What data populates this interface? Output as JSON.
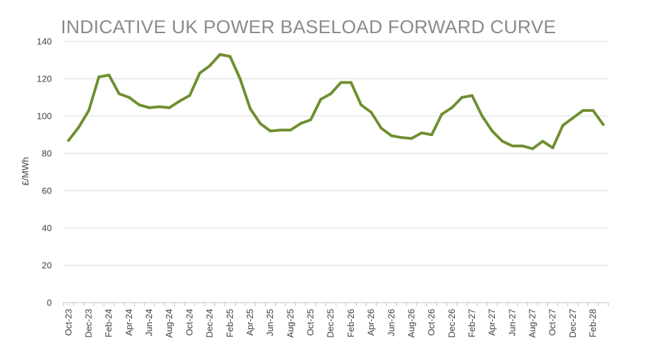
{
  "chart_data": {
    "type": "line",
    "title": "INDICATIVE UK POWER BASELOAD FORWARD CURVE",
    "ylabel": "£/MWh",
    "xlabel": "",
    "ylim": [
      0,
      140
    ],
    "yticks": [
      0,
      20,
      40,
      60,
      80,
      100,
      120,
      140
    ],
    "grid": true,
    "x": [
      "Oct-23",
      "Nov-23",
      "Dec-23",
      "Jan-24",
      "Feb-24",
      "Mar-24",
      "Apr-24",
      "May-24",
      "Jun-24",
      "Jul-24",
      "Aug-24",
      "Sep-24",
      "Oct-24",
      "Nov-24",
      "Dec-24",
      "Jan-25",
      "Feb-25",
      "Mar-25",
      "Apr-25",
      "May-25",
      "Jun-25",
      "Jul-25",
      "Aug-25",
      "Sep-25",
      "Oct-25",
      "Nov-25",
      "Dec-25",
      "Jan-26",
      "Feb-26",
      "Mar-26",
      "Apr-26",
      "May-26",
      "Jun-26",
      "Jul-26",
      "Aug-26",
      "Sep-26",
      "Oct-26",
      "Nov-26",
      "Dec-26",
      "Jan-27",
      "Feb-27",
      "Mar-27",
      "Apr-27",
      "May-27",
      "Jun-27",
      "Jul-27",
      "Aug-27",
      "Sep-27",
      "Oct-27",
      "Nov-27",
      "Dec-27",
      "Jan-28",
      "Feb-28",
      "Mar-28"
    ],
    "xtick_labels": [
      "Oct-23",
      "Dec-23",
      "Feb-24",
      "Apr-24",
      "Jun-24",
      "Aug-24",
      "Oct-24",
      "Dec-24",
      "Feb-25",
      "Apr-25",
      "Jun-25",
      "Aug-25",
      "Oct-25",
      "Dec-25",
      "Feb-26",
      "Apr-26",
      "Jun-26",
      "Aug-26",
      "Oct-26",
      "Dec-26",
      "Feb-27",
      "Apr-27",
      "Jun-27",
      "Aug-27",
      "Oct-27",
      "Dec-27",
      "Feb-28"
    ],
    "series": [
      {
        "color": "#6f8f31",
        "values": [
          87,
          94,
          103,
          121,
          122,
          112,
          110,
          106,
          104.5,
          105,
          104.5,
          108,
          111,
          123,
          127,
          133,
          132,
          120,
          104,
          96,
          92,
          92.5,
          92.5,
          96,
          98,
          109,
          112,
          118,
          118,
          106,
          102,
          93.5,
          89.5,
          88.5,
          88,
          91,
          90,
          101,
          104.5,
          110,
          111,
          100,
          92,
          86.5,
          84,
          84,
          82.5,
          86.5,
          83,
          95,
          99,
          103,
          103,
          95.5
        ]
      }
    ]
  }
}
